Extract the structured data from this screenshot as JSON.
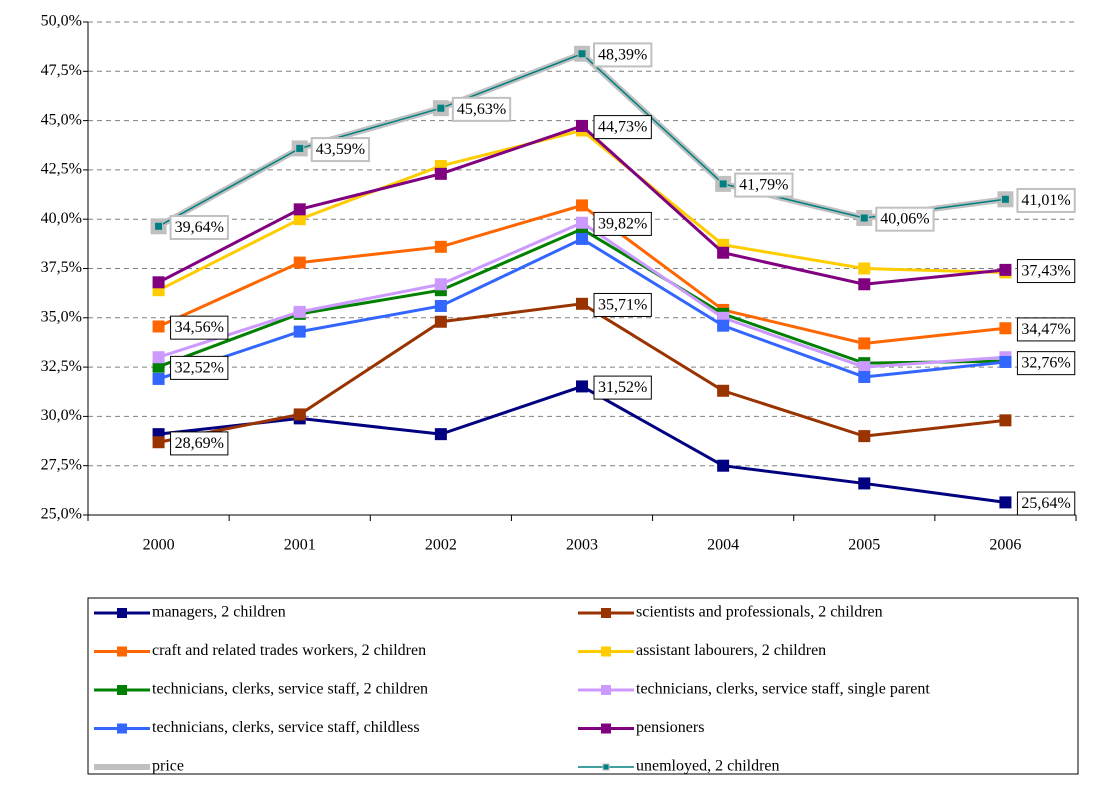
{
  "chart_data": {
    "type": "line",
    "categories": [
      "2000",
      "2001",
      "2002",
      "2003",
      "2004",
      "2005",
      "2006"
    ],
    "ylim": [
      25,
      50
    ],
    "yticks": [
      {
        "value": 25,
        "label": "25,0%"
      },
      {
        "value": 27.5,
        "label": "27,5%"
      },
      {
        "value": 30,
        "label": "30,0%"
      },
      {
        "value": 32.5,
        "label": "32,5%"
      },
      {
        "value": 35,
        "label": "35,0%"
      },
      {
        "value": 37.5,
        "label": "37,5%"
      },
      {
        "value": 40,
        "label": "40,0%"
      },
      {
        "value": 42.5,
        "label": "42,5%"
      },
      {
        "value": 45,
        "label": "45,0%"
      },
      {
        "value": 47.5,
        "label": "47,5%"
      },
      {
        "value": 50,
        "label": "50,0%"
      }
    ],
    "grid": true,
    "series": [
      {
        "name": "managers, 2 children",
        "color": "#000080",
        "values": [
          29.1,
          29.9,
          29.1,
          31.52,
          27.5,
          26.6,
          25.64
        ],
        "value_labels": [
          null,
          null,
          null,
          "31,52%",
          null,
          null,
          "25,64%"
        ]
      },
      {
        "name": "scientists and professionals, 2 children",
        "color": "#993300",
        "values": [
          28.69,
          30.1,
          34.8,
          35.71,
          31.3,
          29.0,
          29.8
        ],
        "value_labels": [
          "28,69%",
          null,
          null,
          "35,71%",
          null,
          null,
          null
        ]
      },
      {
        "name": "craft and related trades workers, 2 children",
        "color": "#ff6600",
        "values": [
          34.56,
          37.8,
          38.6,
          40.7,
          35.4,
          33.7,
          34.47
        ],
        "value_labels": [
          "34,56%",
          null,
          null,
          null,
          null,
          null,
          "34,47%"
        ]
      },
      {
        "name": "assistant labourers, 2 children",
        "color": "#ffcc00",
        "values": [
          36.4,
          40.0,
          42.7,
          44.5,
          38.7,
          37.5,
          37.3
        ]
      },
      {
        "name": "technicians, clerks, service staff, 2 children",
        "color": "#008000",
        "values": [
          32.52,
          35.2,
          36.4,
          39.5,
          35.2,
          32.7,
          32.8
        ],
        "value_labels": [
          "32,52%",
          null,
          null,
          null,
          null,
          null,
          null
        ]
      },
      {
        "name": "technicians, clerks, service staff, single parent",
        "color": "#cc99ff",
        "values": [
          33.0,
          35.3,
          36.7,
          39.82,
          35.0,
          32.5,
          33.0
        ],
        "value_labels": [
          null,
          null,
          null,
          "39,82%",
          null,
          null,
          null
        ]
      },
      {
        "name": "technicians, clerks, service staff, childless",
        "color": "#3366ff",
        "values": [
          31.9,
          34.3,
          35.6,
          39.0,
          34.6,
          32.0,
          32.76
        ],
        "value_labels": [
          null,
          null,
          null,
          null,
          null,
          null,
          "32,76%"
        ]
      },
      {
        "name": "pensioners",
        "color": "#800080",
        "values": [
          36.8,
          40.5,
          42.3,
          44.73,
          38.3,
          36.7,
          37.43
        ],
        "value_labels": [
          null,
          null,
          null,
          "44,73%",
          null,
          null,
          "37,43%"
        ]
      },
      {
        "name": "price",
        "color": "#c0c0c0",
        "values": [
          39.64,
          43.59,
          45.63,
          48.39,
          41.79,
          40.06,
          41.01
        ],
        "value_labels": [
          "39,64%",
          "43,59%",
          "45,63%",
          "48,39%",
          "41,79%",
          "40,06%",
          "41,01%"
        ]
      },
      {
        "name": "unemloyed, 2 children",
        "color": "#008080",
        "values": [
          39.64,
          43.59,
          45.63,
          48.39,
          41.79,
          40.06,
          41.01
        ]
      }
    ]
  }
}
